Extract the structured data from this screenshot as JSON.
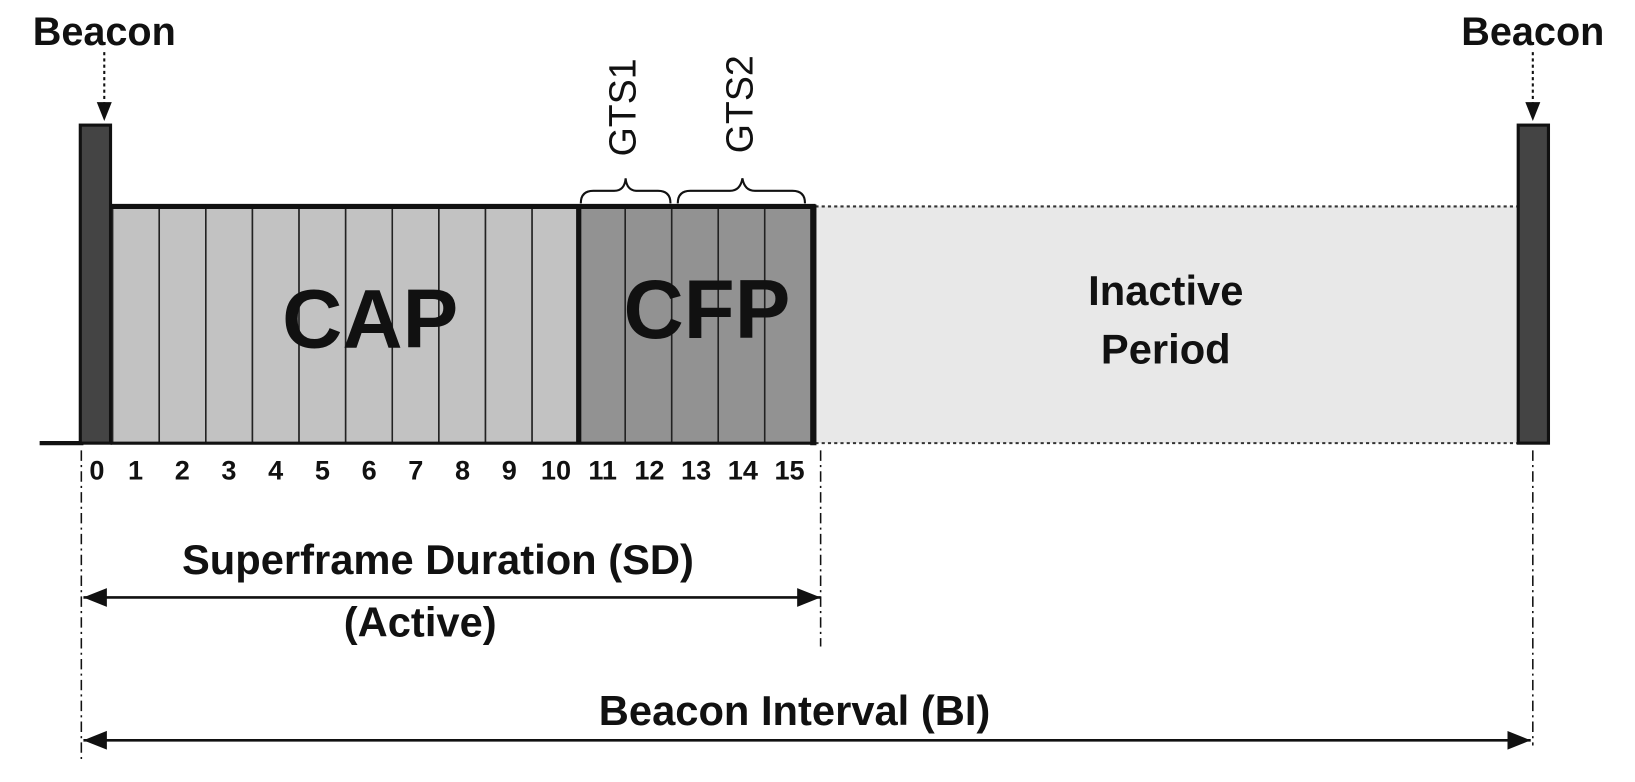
{
  "beacon_left": "Beacon",
  "beacon_right": "Beacon",
  "cap_label": "CAP",
  "cfp_label": "CFP",
  "gts": [
    "GTS1",
    "GTS2"
  ],
  "inactive": [
    "Inactive",
    "Period"
  ],
  "slots": [
    "0",
    "1",
    "2",
    "3",
    "4",
    "5",
    "6",
    "7",
    "8",
    "9",
    "10",
    "11",
    "12",
    "13",
    "14",
    "15"
  ],
  "superframe": {
    "title": "Superframe Duration (SD)",
    "subtitle": "(Active)"
  },
  "beacon_interval": "Beacon Interval (BI)"
}
